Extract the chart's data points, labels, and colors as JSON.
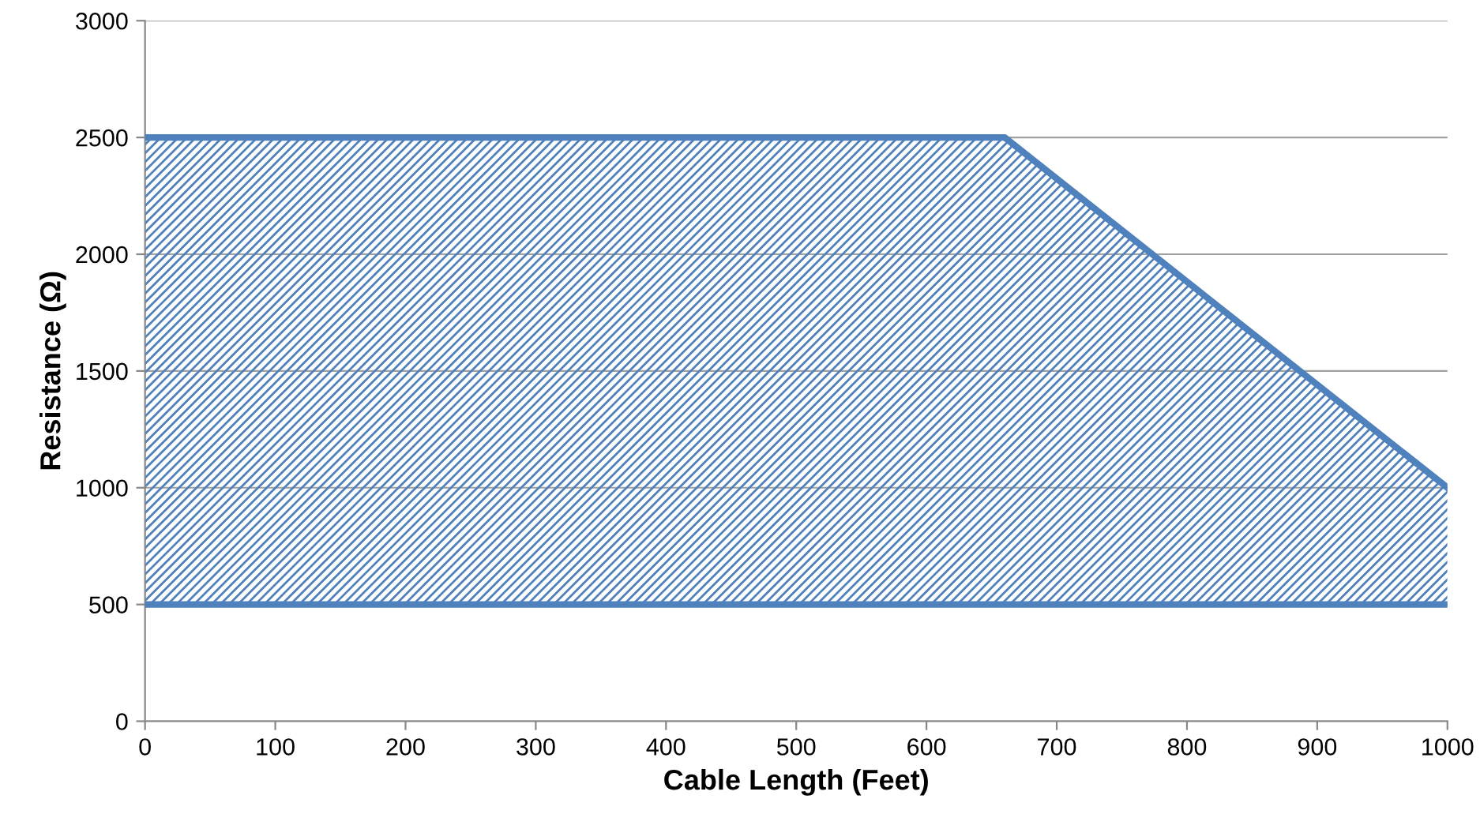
{
  "chart_data": {
    "type": "line",
    "xlabel": "Cable Length (Feet)",
    "ylabel": "Resistance (Ω)",
    "xlim": [
      0,
      1000
    ],
    "xticks": [
      0,
      100,
      200,
      300,
      400,
      500,
      600,
      700,
      800,
      900,
      1000
    ],
    "ylim": [
      0,
      3000
    ],
    "yticks": [
      0,
      500,
      1000,
      1500,
      2000,
      2500,
      3000
    ],
    "grid": "y",
    "marker": "none",
    "line_style": "solid",
    "series": [
      {
        "x": [
          0,
          660,
          1000
        ],
        "values": [
          2500,
          2500,
          1000
        ],
        "lower": [
          500,
          500,
          500
        ],
        "upper": [
          2500,
          2500,
          1000
        ],
        "color": "#4f81bd"
      },
      {
        "x": [
          0,
          1000
        ],
        "values": [
          500,
          500
        ],
        "color": "#4f81bd"
      }
    ]
  }
}
